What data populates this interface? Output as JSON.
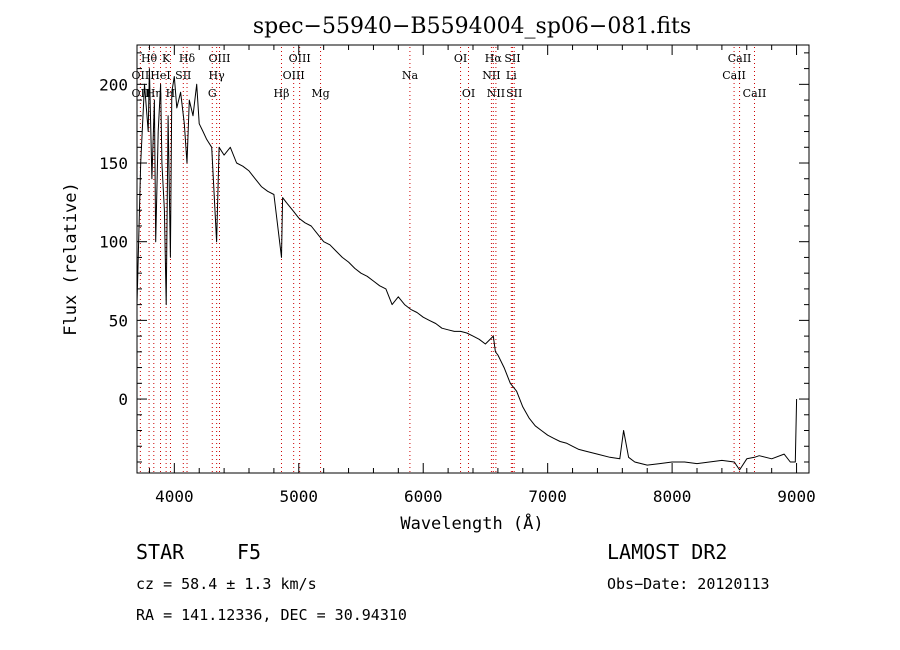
{
  "chart_data": {
    "type": "line",
    "title": "spec−55940−B5594004_sp06−081.fits",
    "xlabel": "Wavelength (Å)",
    "ylabel": "Flux (relative)",
    "xlim": [
      3700,
      9100
    ],
    "ylim": [
      -47,
      225
    ],
    "xticks": [
      4000,
      5000,
      6000,
      7000,
      8000,
      9000
    ],
    "yticks": [
      0,
      50,
      100,
      150,
      200
    ],
    "grid": false,
    "series": [
      {
        "x": [
          3700,
          3730,
          3760,
          3790,
          3800,
          3820,
          3840,
          3850,
          3870,
          3890,
          3900,
          3920,
          3935,
          3950,
          3968,
          3980,
          4000,
          4020,
          4050,
          4080,
          4102,
          4120,
          4150,
          4180,
          4200,
          4230,
          4260,
          4300,
          4340,
          4360,
          4400,
          4450,
          4500,
          4550,
          4600,
          4650,
          4700,
          4750,
          4800,
          4861,
          4870,
          4900,
          4950,
          5000,
          5050,
          5100,
          5150,
          5200,
          5250,
          5300,
          5350,
          5400,
          5450,
          5500,
          5550,
          5600,
          5650,
          5700,
          5750,
          5800,
          5850,
          5900,
          5950,
          6000,
          6050,
          6100,
          6150,
          6200,
          6250,
          6300,
          6350,
          6400,
          6450,
          6500,
          6563,
          6580,
          6600,
          6650,
          6700,
          6750,
          6800,
          6850,
          6900,
          6950,
          7000,
          7050,
          7100,
          7150,
          7200,
          7250,
          7300,
          7400,
          7500,
          7580,
          7610,
          7650,
          7700,
          7800,
          7900,
          8000,
          8100,
          8200,
          8300,
          8400,
          8500,
          8542,
          8600,
          8662,
          8700,
          8800,
          8900,
          8950,
          8990,
          9000
        ],
        "y": [
          60,
          150,
          200,
          170,
          210,
          140,
          190,
          100,
          170,
          200,
          150,
          120,
          60,
          180,
          90,
          195,
          205,
          185,
          195,
          175,
          150,
          190,
          180,
          200,
          175,
          170,
          165,
          160,
          100,
          160,
          155,
          160,
          150,
          148,
          145,
          140,
          135,
          132,
          130,
          90,
          128,
          125,
          120,
          115,
          112,
          110,
          105,
          100,
          98,
          94,
          90,
          87,
          83,
          80,
          78,
          75,
          72,
          70,
          60,
          65,
          60,
          57,
          55,
          52,
          50,
          48,
          45,
          44,
          43,
          43,
          42,
          40,
          38,
          35,
          40,
          30,
          28,
          20,
          10,
          5,
          -5,
          -12,
          -17,
          -20,
          -23,
          -25,
          -27,
          -28,
          -30,
          -32,
          -33,
          -35,
          -37,
          -38,
          -20,
          -37,
          -40,
          -42,
          -41,
          -40,
          -40,
          -41,
          -40,
          -39,
          -40,
          -45,
          -38,
          -37,
          -36,
          -38,
          -35,
          -40,
          -40,
          0
        ]
      }
    ],
    "line_labels": [
      {
        "label": "Hθ",
        "x": 3797,
        "row": 0
      },
      {
        "label": "K",
        "x": 3934,
        "row": 0
      },
      {
        "label": "Hδ",
        "x": 4102,
        "row": 0
      },
      {
        "label": "OIII",
        "x": 4363,
        "row": 0
      },
      {
        "label": "OIII",
        "x": 5007,
        "row": 0
      },
      {
        "label": "OI",
        "x": 6300,
        "row": 0
      },
      {
        "label": "Hα",
        "x": 6563,
        "row": 0
      },
      {
        "label": "SII",
        "x": 6717,
        "row": 0
      },
      {
        "label": "CaII",
        "x": 8542,
        "row": 0
      },
      {
        "label": "OII",
        "x": 3727,
        "row": 1
      },
      {
        "label": "HeI",
        "x": 3889,
        "row": 1
      },
      {
        "label": "SII",
        "x": 4072,
        "row": 1
      },
      {
        "label": "Hγ",
        "x": 4340,
        "row": 1
      },
      {
        "label": "OIII",
        "x": 4959,
        "row": 1
      },
      {
        "label": "Na",
        "x": 5893,
        "row": 1
      },
      {
        "label": "NII",
        "x": 6548,
        "row": 1
      },
      {
        "label": "Li",
        "x": 6708,
        "row": 1
      },
      {
        "label": "CaII",
        "x": 8498,
        "row": 1
      },
      {
        "label": "OII",
        "x": 3727,
        "row": 2
      },
      {
        "label": "Hη",
        "x": 3835,
        "row": 2
      },
      {
        "label": "H",
        "x": 3969,
        "row": 2
      },
      {
        "label": "G",
        "x": 4305,
        "row": 2
      },
      {
        "label": "Hβ",
        "x": 4861,
        "row": 2
      },
      {
        "label": "Mg",
        "x": 5175,
        "row": 2
      },
      {
        "label": "OI",
        "x": 6364,
        "row": 2
      },
      {
        "label": "NII",
        "x": 6584,
        "row": 2
      },
      {
        "label": "SII",
        "x": 6731,
        "row": 2
      },
      {
        "label": "CaII",
        "x": 8662,
        "row": 2
      }
    ],
    "line_color": "#cc0000"
  },
  "footer": {
    "object_class": "STAR",
    "subclass": "F5",
    "survey": "LAMOST DR2",
    "cz": "cz = 58.4 ± 1.3 km/s",
    "obs_date": "Obs−Date: 20120113",
    "coords": "RA = 141.12336, DEC =  30.94310"
  }
}
